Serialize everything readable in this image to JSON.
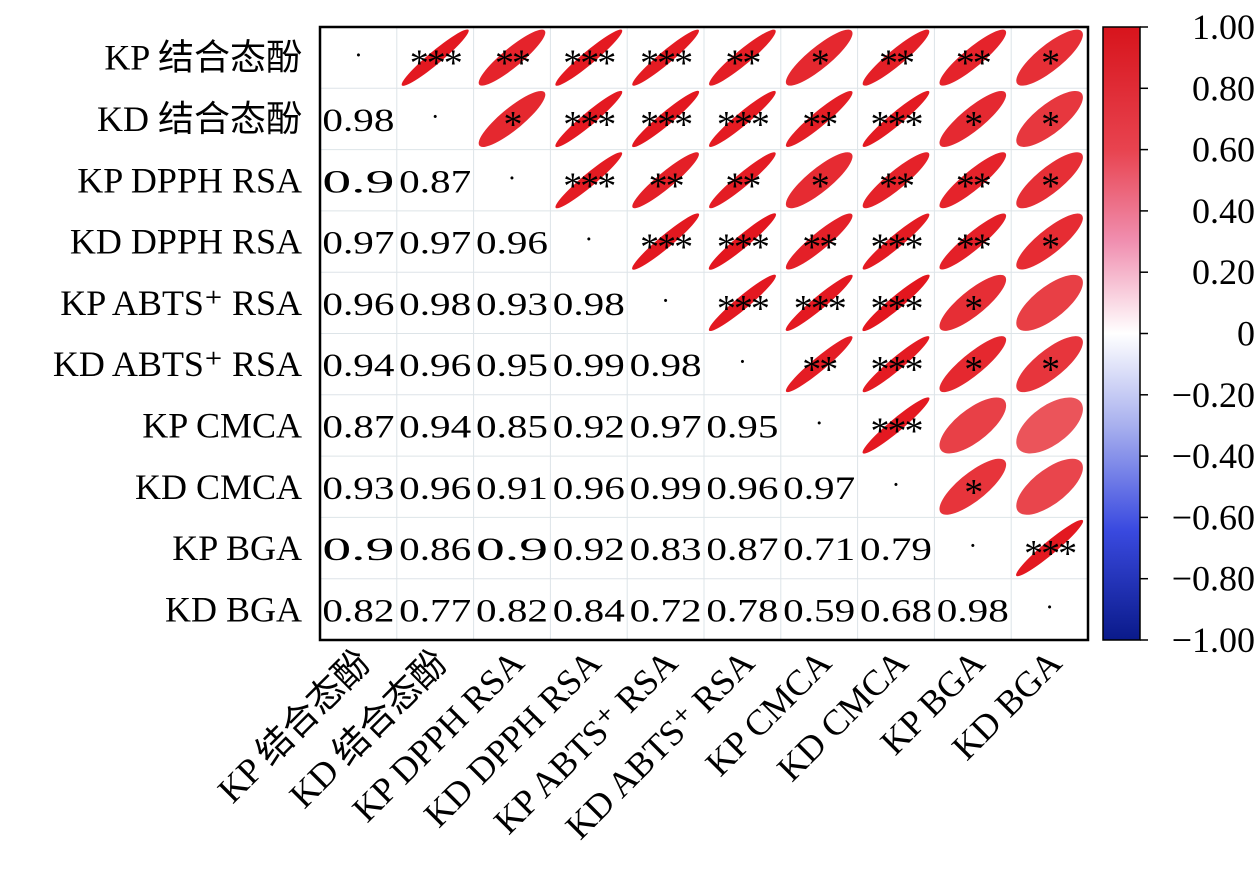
{
  "chart_data": {
    "type": "heatmap",
    "subtype": "correlation-matrix-ellipse",
    "variables": [
      "KP 结合态酚",
      "KD 结合态酚",
      "KP DPPH RSA",
      "KD DPPH RSA",
      "KP ABTS⁺ RSA",
      "KD ABTS⁺ RSA",
      "KP CMCA",
      "KD CMCA",
      "KP BGA",
      "KD BGA"
    ],
    "lower_values": [
      [],
      [
        0.98
      ],
      [
        0.9,
        0.87
      ],
      [
        0.97,
        0.97,
        0.96
      ],
      [
        0.96,
        0.98,
        0.93,
        0.98
      ],
      [
        0.94,
        0.96,
        0.95,
        0.99,
        0.98
      ],
      [
        0.87,
        0.94,
        0.85,
        0.92,
        0.97,
        0.95
      ],
      [
        0.93,
        0.96,
        0.91,
        0.96,
        0.99,
        0.96,
        0.97
      ],
      [
        0.9,
        0.86,
        0.9,
        0.92,
        0.83,
        0.87,
        0.71,
        0.79
      ],
      [
        0.82,
        0.77,
        0.82,
        0.84,
        0.72,
        0.78,
        0.59,
        0.68,
        0.98
      ]
    ],
    "significance_upper": [
      [
        "",
        "***",
        "**",
        "***",
        "***",
        "**",
        "*",
        "**",
        "**",
        "*"
      ],
      [
        "",
        "",
        "*",
        "***",
        "***",
        "***",
        "**",
        "***",
        "*",
        "*"
      ],
      [
        "",
        "",
        "",
        "***",
        "**",
        "**",
        "*",
        "**",
        "**",
        "*"
      ],
      [
        "",
        "",
        "",
        "",
        "***",
        "***",
        "**",
        "***",
        "**",
        "*"
      ],
      [
        "",
        "",
        "",
        "",
        "",
        "***",
        "***",
        "***",
        "*",
        ""
      ],
      [
        "",
        "",
        "",
        "",
        "",
        "",
        "**",
        "***",
        "*",
        "*"
      ],
      [
        "",
        "",
        "",
        "",
        "",
        "",
        "",
        "***",
        "",
        ""
      ],
      [
        "",
        "",
        "",
        "",
        "",
        "",
        "",
        "",
        "*",
        ""
      ],
      [
        "",
        "",
        "",
        "",
        "",
        "",
        "",
        "",
        "",
        "***"
      ],
      [
        "",
        "",
        "",
        "",
        "",
        "",
        "",
        "",
        "",
        ""
      ]
    ],
    "diagonal_marker": "·",
    "colorbar": {
      "range": [
        -1,
        1
      ],
      "ticks": [
        "1.00",
        "0.80",
        "0.60",
        "0.40",
        "0.20",
        "0",
        "−0.20",
        "−0.40",
        "−0.60",
        "−0.80",
        "−1.00"
      ],
      "colors": {
        "pos": "#e3151d",
        "mid": "#ffffff",
        "neg": "#0a1a9a"
      }
    }
  }
}
